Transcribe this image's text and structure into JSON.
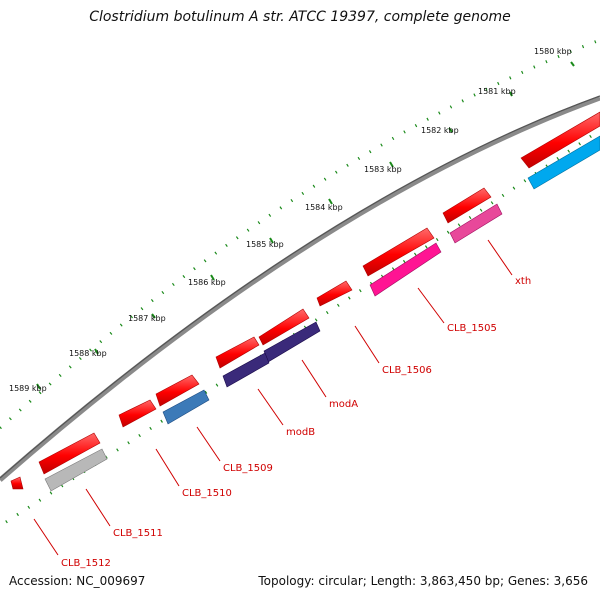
{
  "title": "Clostridium botulinum A str. ATCC 19397, complete genome",
  "footer": {
    "accession": "Accession: NC_009697",
    "summary": "Topology: circular; Length: 3,863,450 bp; Genes: 3,656"
  },
  "ticks": [
    {
      "label": "1580 kbp"
    },
    {
      "label": "1581 kbp"
    },
    {
      "label": "1582 kbp"
    },
    {
      "label": "1583 kbp"
    },
    {
      "label": "1584 kbp"
    },
    {
      "label": "1585 kbp"
    },
    {
      "label": "1586 kbp"
    },
    {
      "label": "1587 kbp"
    },
    {
      "label": "1588 kbp"
    },
    {
      "label": "1589 kbp"
    }
  ],
  "genes": [
    {
      "label": "xth"
    },
    {
      "label": "CLB_1505"
    },
    {
      "label": "CLB_1506"
    },
    {
      "label": "modA"
    },
    {
      "label": "modB"
    },
    {
      "label": "CLB_1509"
    },
    {
      "label": "CLB_1510"
    },
    {
      "label": "CLB_1511"
    },
    {
      "label": "CLB_1512"
    }
  ],
  "colors": {
    "backbone": "#7a7a7a",
    "ticks": "#1a8a1a",
    "forward_gene": "#ff0000",
    "label_red": "#d00000"
  }
}
